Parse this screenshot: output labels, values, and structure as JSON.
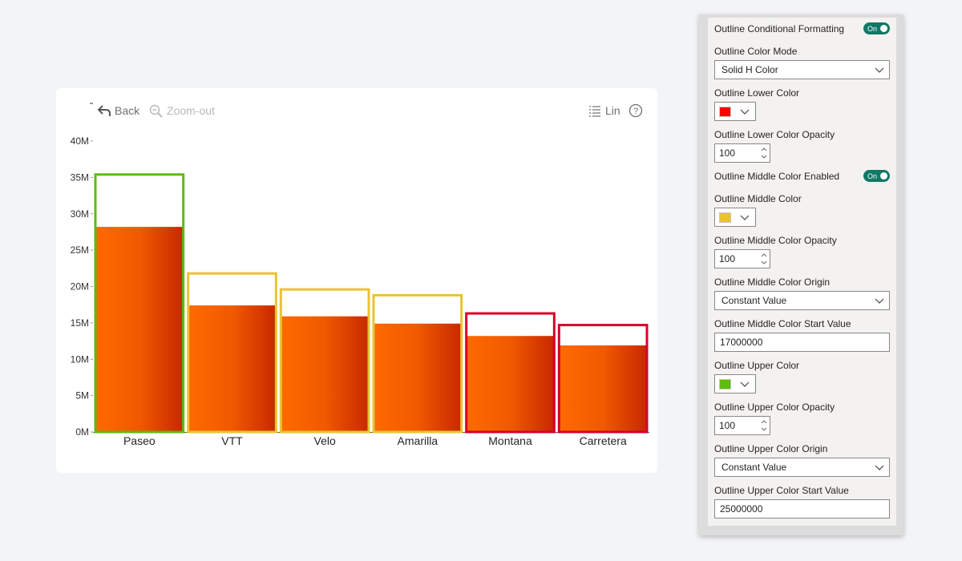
{
  "toolbar": {
    "back_label": "Back",
    "zoom_out_label": "Zoom-out",
    "scale_label": "Lin"
  },
  "chart_data": {
    "type": "bar",
    "categories": [
      "Paseo",
      "VTT",
      "Velo",
      "Amarilla",
      "Montana",
      "Carretera"
    ],
    "series": [
      {
        "name": "",
        "values": [
          28200000,
          17400000,
          15900000,
          14900000,
          13200000,
          11900000
        ]
      },
      {
        "name": "",
        "values": [
          35400000,
          21800000,
          19600000,
          18800000,
          16300000,
          14700000
        ]
      }
    ],
    "outline_colors": [
      "#5dbb12",
      "#eac333",
      "#eac333",
      "#eac333",
      "#d6002a",
      "#d6002a"
    ],
    "bar_fill": {
      "base": "#ff6a00",
      "shade_start": "#f05a00",
      "shade_end": "#c82800"
    },
    "y_ticks": [
      "0M",
      "5M",
      "10M",
      "15M",
      "20M",
      "25M",
      "30M",
      "35M",
      "40M"
    ],
    "ylim": [
      0,
      40000000
    ],
    "grid": false
  },
  "panel": {
    "conditional_formatting": {
      "label": "Outline Conditional Formatting",
      "toggle": "On"
    },
    "color_mode": {
      "label": "Outline Color Mode",
      "value": "Solid H Color"
    },
    "lower_color": {
      "label": "Outline Lower Color",
      "color": "#ff0000"
    },
    "lower_opacity": {
      "label": "Outline Lower Color Opacity",
      "value": "100"
    },
    "middle_enabled": {
      "label": "Outline Middle Color Enabled",
      "toggle": "On"
    },
    "middle_color": {
      "label": "Outline Middle Color",
      "color": "#eac333"
    },
    "middle_opacity": {
      "label": "Outline Middle Color Opacity",
      "value": "100"
    },
    "middle_origin": {
      "label": "Outline Middle Color Origin",
      "value": "Constant Value"
    },
    "middle_start": {
      "label": "Outline Middle Color Start Value",
      "value": "17000000"
    },
    "upper_color": {
      "label": "Outline Upper Color",
      "color": "#5dbb12"
    },
    "upper_opacity": {
      "label": "Outline Upper Color Opacity",
      "value": "100"
    },
    "upper_origin": {
      "label": "Outline Upper Color Origin",
      "value": "Constant Value"
    },
    "upper_start": {
      "label": "Outline Upper Color Start Value",
      "value": "25000000"
    }
  }
}
